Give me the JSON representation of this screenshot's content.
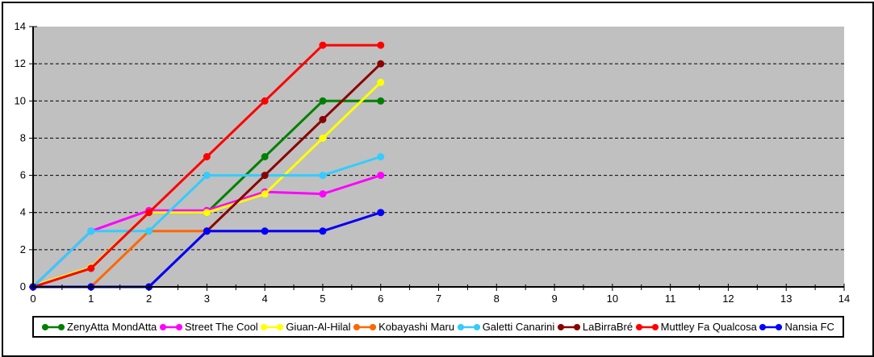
{
  "figure": {
    "background_color": "#FFFFFF",
    "border_color": "#000000"
  },
  "chart_data": {
    "type": "line",
    "title": "",
    "xlabel": "",
    "ylabel": "",
    "xlim": [
      0,
      14
    ],
    "ylim": [
      0,
      14
    ],
    "x_tick_step": 1,
    "x_minor_tick_step": 0.5,
    "y_tick_step": 2,
    "x_tick_labels": [
      "0",
      "1",
      "2",
      "3",
      "4",
      "5",
      "6",
      "7",
      "8",
      "9",
      "10",
      "11",
      "12",
      "13",
      "14"
    ],
    "y_tick_labels": [
      "0",
      "2",
      "4",
      "6",
      "8",
      "10",
      "12",
      "14"
    ],
    "grid": "horizontal-dashed",
    "gridline_color": "#000000",
    "plot_background": "#C0C0C0",
    "axis_color": "#000000",
    "tick_label_color": "#000000",
    "legend_position": "bottom",
    "x": [
      0,
      1,
      2,
      3,
      4,
      5,
      6
    ],
    "series": [
      {
        "name": "ZenyAtta MondAtta",
        "color": "#008000",
        "values": [
          0,
          1,
          4,
          4,
          7,
          10,
          10
        ]
      },
      {
        "name": "Street The Cool",
        "color": "#FF00FF",
        "values": [
          0,
          3,
          4,
          4,
          5,
          5,
          6
        ]
      },
      {
        "name": "Giuan-Al-Hilal",
        "color": "#FFFF00",
        "values": [
          0,
          1,
          4,
          4,
          5,
          8,
          11
        ]
      },
      {
        "name": "Kobayashi Maru",
        "color": "#FF6600",
        "values": [
          0,
          0,
          3,
          3,
          3,
          3,
          4
        ]
      },
      {
        "name": "Galetti Canarini",
        "color": "#33CCFF",
        "values": [
          0,
          3,
          3,
          6,
          6,
          6,
          7
        ]
      },
      {
        "name": "LaBirraBré",
        "color": "#8B0000",
        "values": [
          0,
          0,
          0,
          3,
          6,
          9,
          12
        ]
      },
      {
        "name": "Muttley Fa Qualcosa",
        "color": "#FF0000",
        "values": [
          0,
          1,
          4,
          7,
          10,
          13,
          13
        ]
      },
      {
        "name": "Nansia FC",
        "color": "#0000FF",
        "values": [
          0,
          0,
          0,
          3,
          3,
          3,
          4
        ]
      }
    ]
  }
}
